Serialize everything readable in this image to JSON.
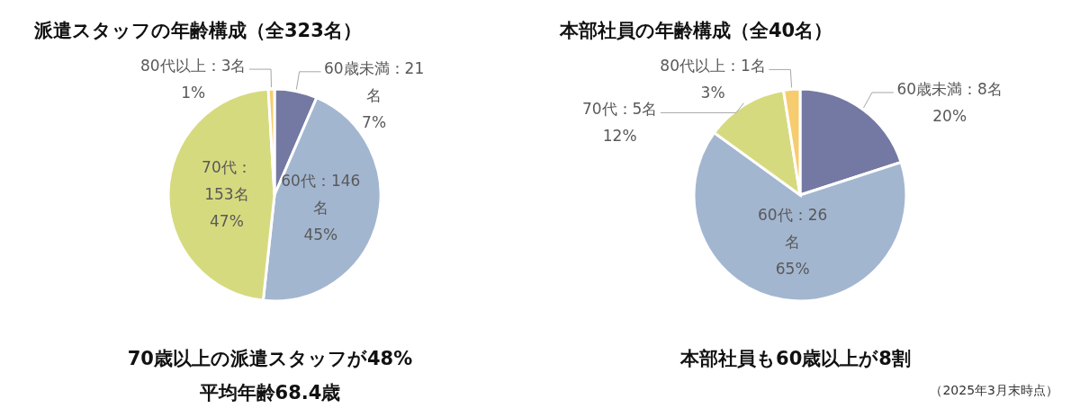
{
  "chart_data": [
    {
      "type": "pie",
      "title": "派遣スタッフの年齢構成（全323名）",
      "categories": [
        "60歳未満",
        "60代",
        "70代",
        "80代以上"
      ],
      "values": [
        21,
        146,
        153,
        3
      ],
      "colors": [
        "#7479a3",
        "#a3b6d0",
        "#d6da7e",
        "#f7cc6e"
      ],
      "value_labels": [
        "：21\n名\n7%",
        "：146\n名\n45%",
        "：\n153名\n47%",
        "：3名\n1%"
      ],
      "annotations": [
        "70歳以上の派遣スタッフが48%",
        "平均年齢68.4歳"
      ]
    },
    {
      "type": "pie",
      "title": "本部社員の年齢構成（全40名）",
      "categories": [
        "60歳未満",
        "60代",
        "70代",
        "80代以上"
      ],
      "values": [
        8,
        26,
        5,
        1
      ],
      "colors": [
        "#7479a3",
        "#a3b6d0",
        "#d6da7e",
        "#f7cc6e"
      ],
      "value_labels": [
        "：8名\n20%",
        "：26\n名\n65%",
        "：5名\n12%",
        "：1名\n3%"
      ],
      "annotations": [
        "本部社員も60歳以上が8割",
        "（2025年3月末時点）"
      ]
    }
  ]
}
